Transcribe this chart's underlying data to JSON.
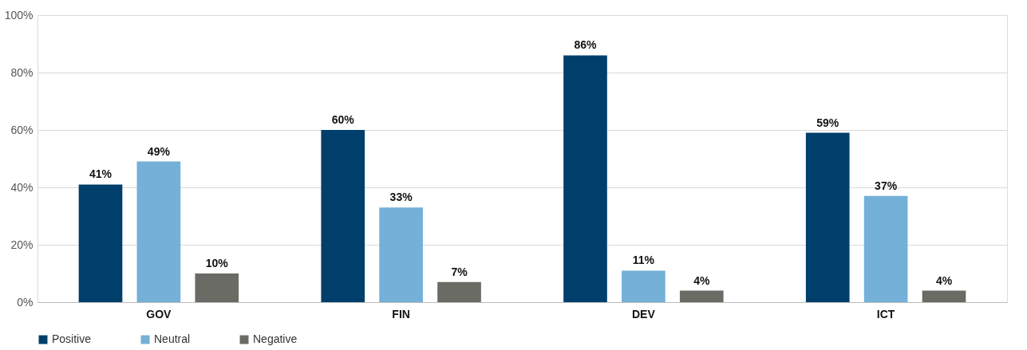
{
  "chart_data": {
    "type": "bar",
    "categories": [
      "GOV",
      "FIN",
      "DEV",
      "ICT"
    ],
    "series": [
      {
        "name": "Positive",
        "color": "#003f6b",
        "values": [
          41,
          60,
          86,
          59
        ],
        "value_labels": [
          "41%",
          "60%",
          "86%",
          "59%"
        ]
      },
      {
        "name": "Neutral",
        "color": "#74b0d8",
        "values": [
          49,
          33,
          11,
          37
        ],
        "value_labels": [
          "49%",
          "33%",
          "11%",
          "37%"
        ]
      },
      {
        "name": "Negative",
        "color": "#6b6b66",
        "values": [
          10,
          7,
          4,
          4
        ],
        "value_labels": [
          "10%",
          "7%",
          "4%",
          "4%"
        ]
      }
    ],
    "ylim": [
      0,
      100
    ],
    "yticks": [
      {
        "value": 0,
        "label": "0%"
      },
      {
        "value": 20,
        "label": "20%"
      },
      {
        "value": 40,
        "label": "40%"
      },
      {
        "value": 60,
        "label": "60%"
      },
      {
        "value": 80,
        "label": "80%"
      },
      {
        "value": 100,
        "label": "100%"
      }
    ],
    "grid": "y",
    "legend": "bottom"
  }
}
